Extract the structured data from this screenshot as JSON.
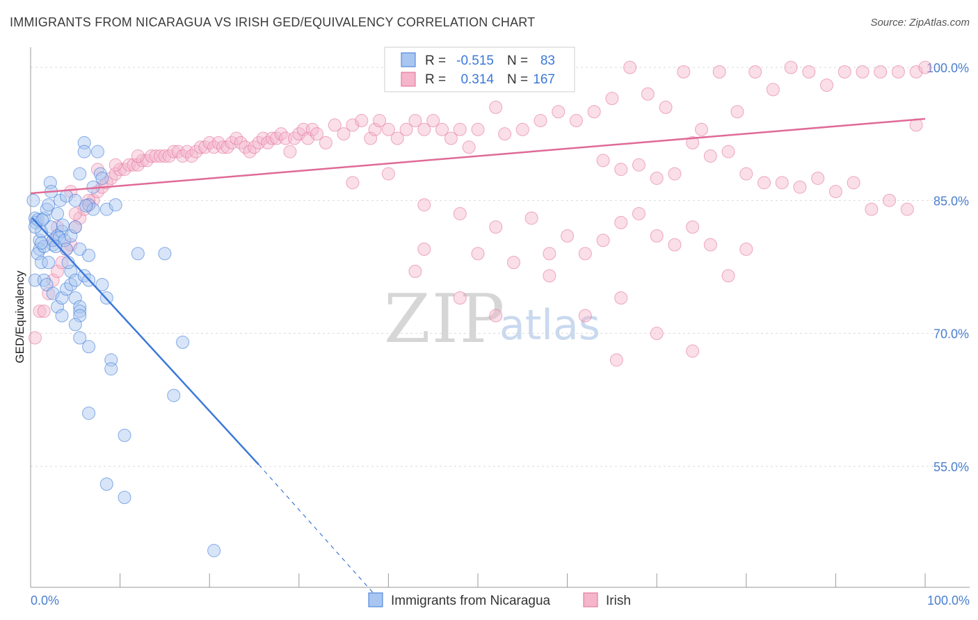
{
  "title": "IMMIGRANTS FROM NICARAGUA VS IRISH GED/EQUIVALENCY CORRELATION CHART",
  "source": "Source: ZipAtlas.com",
  "watermark": {
    "zip": "ZIP",
    "atlas": "atlas"
  },
  "colors": {
    "blue": "#3b78d8",
    "blue_fill": "#a9c6f0",
    "pink": "#e06a96",
    "pink_fill": "#f5b5cb",
    "tick": "#4a7fcf"
  },
  "legend": {
    "rows": [
      {
        "r_label": "R =",
        "r_value": "-0.515",
        "n_label": "N =",
        "n_value": "83"
      },
      {
        "r_label": "R =",
        "r_value": "0.314",
        "n_label": "N =",
        "n_value": "167"
      }
    ]
  },
  "chart_data": {
    "type": "scatter",
    "title": "IMMIGRANTS FROM NICARAGUA VS IRISH GED/EQUIVALENCY CORRELATION CHART",
    "xlabel": "",
    "ylabel": "GED/Equivalency",
    "xlim": [
      0,
      100
    ],
    "ylim": [
      40,
      102
    ],
    "y_ticks": [
      55,
      70,
      85,
      100
    ],
    "y_tick_labels": [
      "55.0%",
      "70.0%",
      "85.0%",
      "100.0%"
    ],
    "x_tick_labels": [
      "0.0%",
      "100.0%"
    ],
    "series": [
      {
        "name": "Immigrants from Nicaragua",
        "R": -0.515,
        "N": 83,
        "trend": {
          "x0": 0.2,
          "y0": 83.0,
          "x1": 25.5,
          "y1": 55.2,
          "dash_to_x": 38.5,
          "dash_to_y": 40.5
        },
        "points": [
          [
            0.3,
            85
          ],
          [
            0.5,
            83
          ],
          [
            0.6,
            82.5
          ],
          [
            0.8,
            82.8
          ],
          [
            1.0,
            80.5
          ],
          [
            1.2,
            81.5
          ],
          [
            1.5,
            83
          ],
          [
            1.8,
            84
          ],
          [
            2.0,
            84.5
          ],
          [
            2.3,
            82
          ],
          [
            2.5,
            80
          ],
          [
            1.0,
            79.5
          ],
          [
            0.8,
            79
          ],
          [
            1.5,
            79.8
          ],
          [
            1.2,
            78
          ],
          [
            2.0,
            78
          ],
          [
            2.5,
            80.5
          ],
          [
            3.0,
            81
          ],
          [
            3.5,
            81.5
          ],
          [
            3.2,
            80.8
          ],
          [
            3.8,
            80.5
          ],
          [
            4.0,
            79.5
          ],
          [
            4.5,
            81
          ],
          [
            5.0,
            82
          ],
          [
            5.5,
            79.5
          ],
          [
            6.5,
            78.8
          ],
          [
            3.0,
            83.5
          ],
          [
            3.3,
            85
          ],
          [
            4.0,
            85.5
          ],
          [
            2.2,
            87
          ],
          [
            2.3,
            86
          ],
          [
            5.0,
            85
          ],
          [
            6.5,
            84.5
          ],
          [
            7.0,
            84
          ],
          [
            8.5,
            84
          ],
          [
            9.5,
            84.5
          ],
          [
            5.5,
            88
          ],
          [
            6.0,
            91.5
          ],
          [
            6.0,
            90.5
          ],
          [
            7.5,
            90.5
          ],
          [
            7.8,
            88
          ],
          [
            8.0,
            87.5
          ],
          [
            7.0,
            86.5
          ],
          [
            0.5,
            76
          ],
          [
            1.5,
            76
          ],
          [
            1.8,
            75.5
          ],
          [
            2.5,
            74.5
          ],
          [
            3.0,
            73
          ],
          [
            3.5,
            74
          ],
          [
            4.0,
            75
          ],
          [
            4.5,
            75.5
          ],
          [
            5.0,
            74
          ],
          [
            5.5,
            73
          ],
          [
            5.5,
            72.5
          ],
          [
            5.5,
            72
          ],
          [
            5.0,
            71
          ],
          [
            3.5,
            72
          ],
          [
            4.5,
            77
          ],
          [
            5.0,
            76
          ],
          [
            6.0,
            76.5
          ],
          [
            6.5,
            76
          ],
          [
            8.0,
            75.5
          ],
          [
            8.5,
            74
          ],
          [
            12.0,
            79
          ],
          [
            15.0,
            79
          ],
          [
            5.5,
            69.5
          ],
          [
            6.5,
            68.5
          ],
          [
            17.0,
            69
          ],
          [
            9.0,
            67
          ],
          [
            9.0,
            66
          ],
          [
            6.5,
            61
          ],
          [
            16.0,
            63
          ],
          [
            10.5,
            58.5
          ],
          [
            8.5,
            53
          ],
          [
            10.5,
            51.5
          ],
          [
            20.5,
            45.5
          ],
          [
            0.5,
            82
          ],
          [
            1.2,
            80.2
          ],
          [
            2.8,
            79.8
          ],
          [
            3.6,
            82.2
          ],
          [
            1.3,
            82.8
          ],
          [
            4.2,
            78
          ],
          [
            6.2,
            84.4
          ]
        ]
      },
      {
        "name": "Irish",
        "R": 0.314,
        "N": 167,
        "trend": {
          "x0": 0,
          "y0": 85.8,
          "x1": 100,
          "y1": 94.2
        },
        "points": [
          [
            0.5,
            69.5
          ],
          [
            1.0,
            72.5
          ],
          [
            1.5,
            72.5
          ],
          [
            2.0,
            74.5
          ],
          [
            2.5,
            76
          ],
          [
            3.0,
            77
          ],
          [
            3.5,
            78
          ],
          [
            4.0,
            79.5
          ],
          [
            4.5,
            80
          ],
          [
            5.0,
            82
          ],
          [
            5.5,
            83
          ],
          [
            6.0,
            84
          ],
          [
            6.5,
            84.5
          ],
          [
            7.0,
            85
          ],
          [
            7.5,
            86
          ],
          [
            8.0,
            86.5
          ],
          [
            8.5,
            87
          ],
          [
            9.0,
            87.5
          ],
          [
            9.5,
            88
          ],
          [
            10.0,
            88.5
          ],
          [
            10.5,
            88.5
          ],
          [
            11.0,
            89
          ],
          [
            11.5,
            89
          ],
          [
            12.0,
            89
          ],
          [
            12.5,
            89.5
          ],
          [
            13.0,
            89.5
          ],
          [
            13.5,
            90
          ],
          [
            14.0,
            90
          ],
          [
            14.5,
            90
          ],
          [
            15.0,
            90
          ],
          [
            15.5,
            90
          ],
          [
            16.0,
            90.5
          ],
          [
            16.5,
            90.5
          ],
          [
            17.0,
            90
          ],
          [
            17.5,
            90.5
          ],
          [
            18.0,
            90
          ],
          [
            18.5,
            90.5
          ],
          [
            19.0,
            91
          ],
          [
            19.5,
            91
          ],
          [
            20.0,
            91.5
          ],
          [
            20.5,
            91
          ],
          [
            21.0,
            91.5
          ],
          [
            21.5,
            91
          ],
          [
            22.0,
            91
          ],
          [
            22.5,
            91.5
          ],
          [
            23.0,
            92
          ],
          [
            23.5,
            91.5
          ],
          [
            24.0,
            91
          ],
          [
            24.5,
            90.5
          ],
          [
            25.0,
            91
          ],
          [
            25.5,
            91.5
          ],
          [
            26.0,
            92
          ],
          [
            26.5,
            91.5
          ],
          [
            27.0,
            92
          ],
          [
            27.5,
            92
          ],
          [
            28.0,
            92.5
          ],
          [
            28.5,
            92
          ],
          [
            29.0,
            90.5
          ],
          [
            29.5,
            92
          ],
          [
            30.0,
            92.5
          ],
          [
            30.5,
            93
          ],
          [
            31.0,
            92
          ],
          [
            31.5,
            93
          ],
          [
            32.0,
            92.5
          ],
          [
            33.0,
            91.5
          ],
          [
            34.0,
            93.5
          ],
          [
            35.0,
            92.5
          ],
          [
            36.0,
            93.5
          ],
          [
            37.0,
            94
          ],
          [
            38.0,
            92
          ],
          [
            38.5,
            93
          ],
          [
            39.0,
            94
          ],
          [
            40.0,
            93
          ],
          [
            41.0,
            92
          ],
          [
            42.0,
            93
          ],
          [
            43.0,
            94
          ],
          [
            44.0,
            93
          ],
          [
            45.0,
            94
          ],
          [
            46.0,
            93
          ],
          [
            47.0,
            92
          ],
          [
            48.0,
            93
          ],
          [
            49.0,
            91
          ],
          [
            50.0,
            93
          ],
          [
            52.0,
            95.5
          ],
          [
            53.0,
            92.5
          ],
          [
            55.0,
            93
          ],
          [
            57.0,
            94
          ],
          [
            59.0,
            95
          ],
          [
            61.0,
            94
          ],
          [
            63.0,
            95
          ],
          [
            65.0,
            96.5
          ],
          [
            67.0,
            100
          ],
          [
            69.0,
            97
          ],
          [
            71.0,
            95.5
          ],
          [
            73.0,
            99.5
          ],
          [
            75.0,
            93
          ],
          [
            77.0,
            99.5
          ],
          [
            79.0,
            95
          ],
          [
            81.0,
            99.5
          ],
          [
            83.0,
            97.5
          ],
          [
            85.0,
            100
          ],
          [
            87.0,
            99.5
          ],
          [
            89.0,
            98
          ],
          [
            91.0,
            99.5
          ],
          [
            93.0,
            99.5
          ],
          [
            95.0,
            99.5
          ],
          [
            97.0,
            99.5
          ],
          [
            99.0,
            99.5
          ],
          [
            100.0,
            100
          ],
          [
            64.0,
            89.5
          ],
          [
            66.0,
            88.5
          ],
          [
            68.0,
            89
          ],
          [
            70.0,
            87.5
          ],
          [
            72.0,
            88
          ],
          [
            74.0,
            91.5
          ],
          [
            76.0,
            90
          ],
          [
            78.0,
            90.5
          ],
          [
            80.0,
            88
          ],
          [
            82.0,
            87
          ],
          [
            84.0,
            87
          ],
          [
            86.0,
            86.5
          ],
          [
            88.0,
            87.5
          ],
          [
            90.0,
            86
          ],
          [
            92.0,
            87
          ],
          [
            94.0,
            84
          ],
          [
            96.0,
            85
          ],
          [
            98.0,
            84
          ],
          [
            36.0,
            87
          ],
          [
            40.0,
            88
          ],
          [
            44.0,
            84.5
          ],
          [
            48.0,
            83.5
          ],
          [
            52.0,
            82
          ],
          [
            56.0,
            83
          ],
          [
            58.0,
            79
          ],
          [
            60.0,
            81
          ],
          [
            62.0,
            79
          ],
          [
            64.0,
            80.5
          ],
          [
            66.0,
            82.5
          ],
          [
            68.0,
            83.5
          ],
          [
            70.0,
            81
          ],
          [
            72.0,
            80
          ],
          [
            74.0,
            82
          ],
          [
            76.0,
            80
          ],
          [
            78.0,
            76.5
          ],
          [
            80.0,
            79.5
          ],
          [
            44.0,
            79.5
          ],
          [
            50.0,
            79
          ],
          [
            54.0,
            78
          ],
          [
            58.0,
            76.5
          ],
          [
            62.0,
            72
          ],
          [
            66.0,
            74
          ],
          [
            70.0,
            70
          ],
          [
            74.0,
            68
          ],
          [
            65.5,
            67
          ],
          [
            43.0,
            77
          ],
          [
            48.0,
            74
          ],
          [
            52.0,
            72
          ],
          [
            3.0,
            82
          ],
          [
            5.0,
            83.5
          ],
          [
            2.5,
            80.5
          ],
          [
            6.5,
            85
          ],
          [
            4.5,
            86
          ],
          [
            7.5,
            88.5
          ],
          [
            9.5,
            89
          ],
          [
            12.0,
            90
          ],
          [
            60.0,
            100
          ],
          [
            99.0,
            93.5
          ]
        ]
      }
    ]
  },
  "bottom_legend": [
    {
      "label": "Immigrants from Nicaragua"
    },
    {
      "label": "Irish"
    }
  ]
}
